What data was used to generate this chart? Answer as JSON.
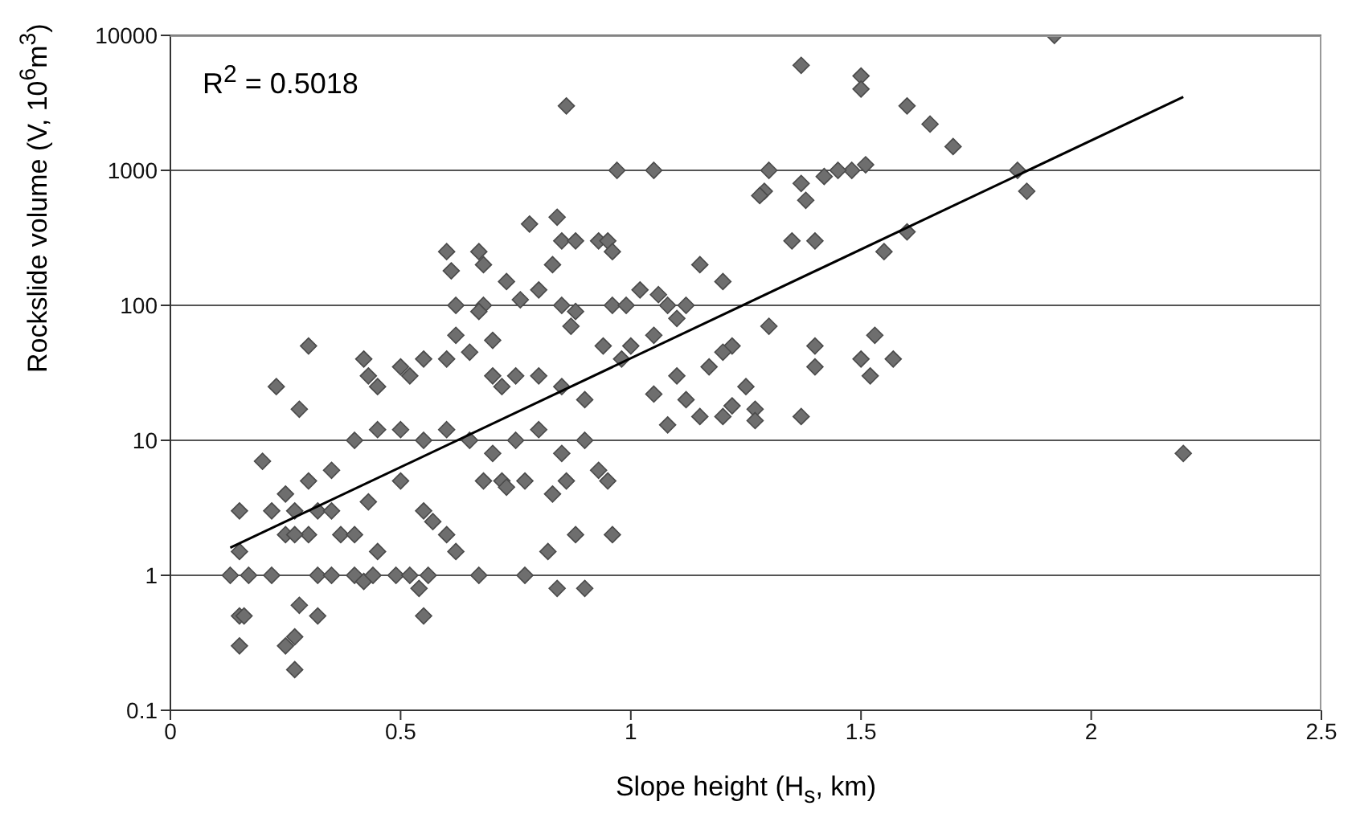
{
  "chart_data": {
    "type": "scatter",
    "xlabel": "Slope height (H$_{s}$, km)",
    "ylabel": "Rockslide volume (V, 10$^{6}$m$^{3}$)",
    "annotations": [
      "R$^{2}$ = 0.5018"
    ],
    "xlim": [
      0,
      2.5
    ],
    "xticks": [
      0,
      0.5,
      1,
      1.5,
      2,
      2.5
    ],
    "ylim": [
      0.1,
      10000
    ],
    "yticks": [
      0.1,
      1,
      10,
      100,
      1000,
      10000
    ],
    "log": "y",
    "grid": "y",
    "marker": "diamond",
    "series": [
      {
        "color": "#6e6e6e",
        "x": [
          1.92,
          1.37,
          1.5,
          1.5,
          1.6,
          1.65,
          1.7,
          0.86,
          1.84,
          1.86,
          1.51,
          1.48,
          0.97,
          1.05,
          1.29,
          1.28,
          1.37,
          1.38,
          1.42,
          1.45,
          1.3,
          1.55,
          1.6,
          1.4,
          1.35,
          1.3,
          1.37,
          1.4,
          1.4,
          1.52,
          1.53,
          1.57,
          1.5,
          2.2,
          0.78,
          0.84,
          0.85,
          0.88,
          0.93,
          0.95,
          0.96,
          0.6,
          0.61,
          0.67,
          0.68,
          0.73,
          0.76,
          0.8,
          0.83,
          0.85,
          0.62,
          0.68,
          0.67,
          0.7,
          0.62,
          0.96,
          0.99,
          1.02,
          1.06,
          1.08,
          1.12,
          1.15,
          1.2,
          1.1,
          1.05,
          1.0,
          0.94,
          0.98,
          0.88,
          0.87,
          1.22,
          1.2,
          1.17,
          1.1,
          1.25,
          1.12,
          1.15,
          1.2,
          1.22,
          1.27,
          1.08,
          1.27,
          1.05,
          0.3,
          0.23,
          0.28,
          0.42,
          0.43,
          0.45,
          0.5,
          0.52,
          0.55,
          0.6,
          0.65,
          0.7,
          0.72,
          0.75,
          0.8,
          0.85,
          0.9,
          0.45,
          0.5,
          0.55,
          0.6,
          0.65,
          0.7,
          0.75,
          0.8,
          0.85,
          0.9,
          0.93,
          0.95,
          0.4,
          0.35,
          0.3,
          0.25,
          0.27,
          0.3,
          0.32,
          0.35,
          0.37,
          0.4,
          0.43,
          0.45,
          0.5,
          0.55,
          0.57,
          0.6,
          0.62,
          0.2,
          0.22,
          0.25,
          0.27,
          0.15,
          0.15,
          0.13,
          0.17,
          0.22,
          0.32,
          0.35,
          0.4,
          0.42,
          0.44,
          0.49,
          0.52,
          0.54,
          0.56,
          0.67,
          0.77,
          0.82,
          0.84,
          0.88,
          0.9,
          0.96,
          0.15,
          0.16,
          0.15,
          0.28,
          0.32,
          0.25,
          0.27,
          0.27,
          0.55,
          0.68,
          0.72,
          0.77,
          0.73,
          0.83,
          0.86
        ],
        "values": [
          10000,
          6000,
          5000,
          4000,
          3000,
          2200,
          1500,
          3000,
          1000,
          700,
          1100,
          1000,
          1000,
          1000,
          700,
          650,
          800,
          600,
          900,
          1000,
          1000,
          250,
          350,
          300,
          300,
          70,
          15,
          35,
          50,
          30,
          60,
          40,
          40,
          8,
          400,
          450,
          300,
          300,
          300,
          300,
          250,
          250,
          180,
          250,
          200,
          150,
          110,
          130,
          200,
          100,
          100,
          100,
          90,
          55,
          60,
          100,
          100,
          130,
          120,
          100,
          100,
          200,
          150,
          80,
          60,
          50,
          50,
          40,
          90,
          70,
          50,
          45,
          35,
          30,
          25,
          20,
          15,
          15,
          18,
          17,
          13,
          14,
          22,
          50,
          25,
          17,
          40,
          30,
          25,
          35,
          30,
          40,
          40,
          45,
          30,
          25,
          30,
          30,
          25,
          20,
          12,
          12,
          10,
          12,
          10,
          8,
          10,
          12,
          8,
          10,
          6,
          5,
          10,
          6,
          5,
          4,
          3,
          2,
          3,
          3,
          2,
          2,
          3.5,
          1.5,
          5,
          3,
          2.5,
          2,
          1.5,
          7,
          3,
          2,
          2,
          1.5,
          3,
          1,
          1,
          1,
          1,
          1,
          1,
          0.9,
          1,
          1,
          1,
          0.8,
          1,
          1,
          1,
          1.5,
          0.8,
          2,
          0.8,
          2,
          0.5,
          0.5,
          0.3,
          0.6,
          0.5,
          0.3,
          0.35,
          0.2,
          0.5,
          5,
          5,
          5,
          4.5,
          4,
          5
        ]
      },
      {
        "type": "line",
        "marker": "none",
        "color": "#000000",
        "x": [
          0.13,
          2.2
        ],
        "values": [
          1.6,
          3500
        ]
      }
    ]
  }
}
